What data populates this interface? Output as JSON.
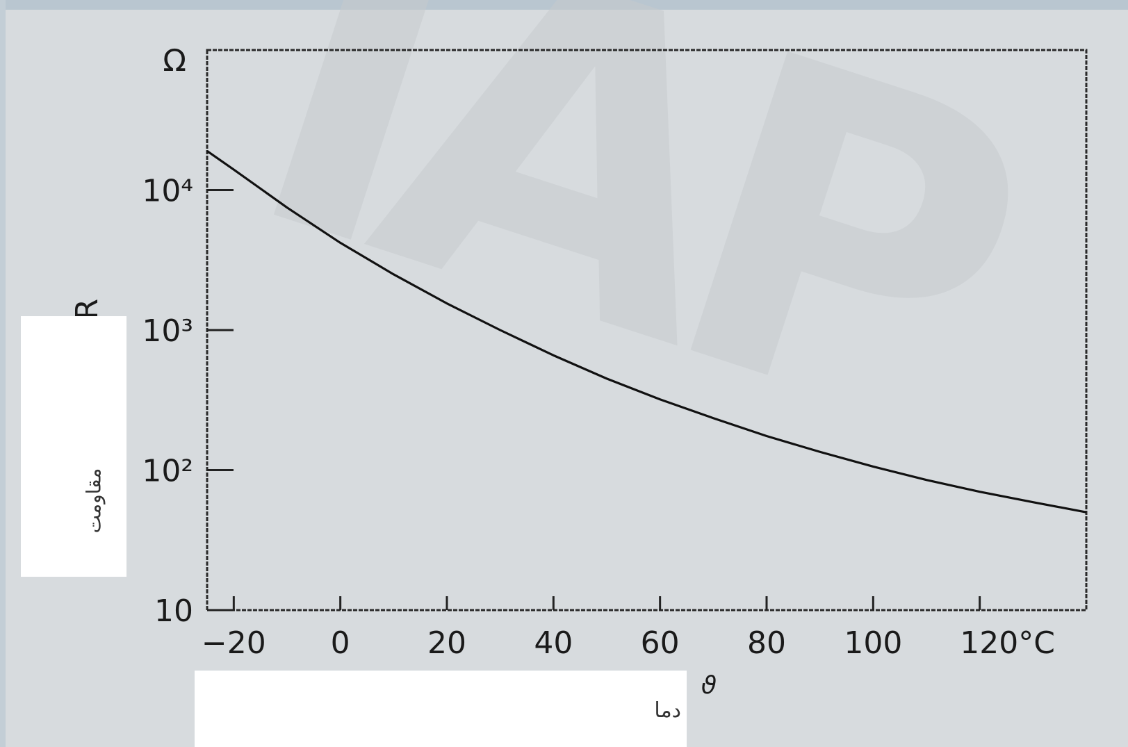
{
  "watermark": {
    "text": "IAP",
    "color": "#c9cdd0"
  },
  "masks": {
    "ylabel_fa": "مقاومت",
    "xlabel_fa": "دما"
  },
  "chart_data": {
    "type": "line",
    "title": "",
    "xlabel": "ϑ",
    "ylabel": "R",
    "y_unit": "Ω",
    "x_unit": "°C",
    "xlim": [
      -25,
      140
    ],
    "ylim": [
      10,
      100000
    ],
    "yscale": "log",
    "grid": false,
    "x_ticks": [
      -20,
      0,
      20,
      40,
      60,
      80,
      100,
      120
    ],
    "x_tick_labels": [
      "−20",
      "0",
      "20",
      "40",
      "60",
      "80",
      "100",
      "120°C"
    ],
    "y_ticks": [
      10,
      100,
      1000,
      10000
    ],
    "y_tick_labels": [
      "10",
      "10²",
      "10³",
      "10⁴"
    ],
    "series": [
      {
        "color": "#111111",
        "x": [
          -25,
          -20,
          -10,
          0,
          10,
          20,
          30,
          40,
          50,
          60,
          70,
          80,
          90,
          100,
          110,
          120,
          130,
          140
        ],
        "y": [
          19000,
          14000,
          7500,
          4200,
          2500,
          1550,
          1000,
          660,
          450,
          320,
          235,
          175,
          135,
          106,
          85,
          70,
          59,
          50
        ]
      }
    ]
  }
}
